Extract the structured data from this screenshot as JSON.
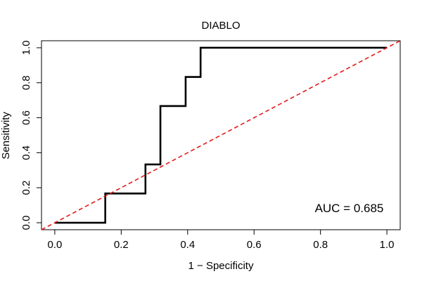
{
  "chart_data": {
    "type": "line",
    "title": "DIABLO",
    "xlabel": "1 − Specificity",
    "ylabel": "Sensitivity",
    "xlim": [
      -0.04,
      1.04
    ],
    "ylim": [
      -0.04,
      1.04
    ],
    "xticks": [
      0.0,
      0.2,
      0.4,
      0.6,
      0.8,
      1.0
    ],
    "xtick_labels": [
      "0.0",
      "0.2",
      "0.4",
      "0.6",
      "0.8",
      "1.0"
    ],
    "yticks": [
      0.0,
      0.2,
      0.4,
      0.6,
      0.8,
      1.0
    ],
    "ytick_labels": [
      "0.0",
      "0.2",
      "0.4",
      "0.6",
      "0.8",
      "1.0"
    ],
    "grid": false,
    "series": [
      {
        "color": "#000000",
        "style": "solid",
        "x": [
          0.0,
          0.152,
          0.152,
          0.273,
          0.273,
          0.303,
          0.303,
          0.318,
          0.318,
          0.394,
          0.394,
          0.409,
          0.409,
          0.439,
          0.439,
          1.0
        ],
        "y": [
          0.0,
          0.0,
          0.167,
          0.167,
          0.333,
          0.333,
          0.333,
          0.333,
          0.667,
          0.667,
          0.833,
          0.833,
          0.833,
          0.833,
          1.0,
          1.0
        ]
      },
      {
        "color": "#e41a1c",
        "style": "dashed",
        "x": [
          -0.04,
          1.04
        ],
        "y": [
          -0.04,
          1.04
        ]
      }
    ],
    "annotations": [
      {
        "text": "AUC = 0.685",
        "x": 0.99,
        "y": 0.06
      }
    ]
  }
}
